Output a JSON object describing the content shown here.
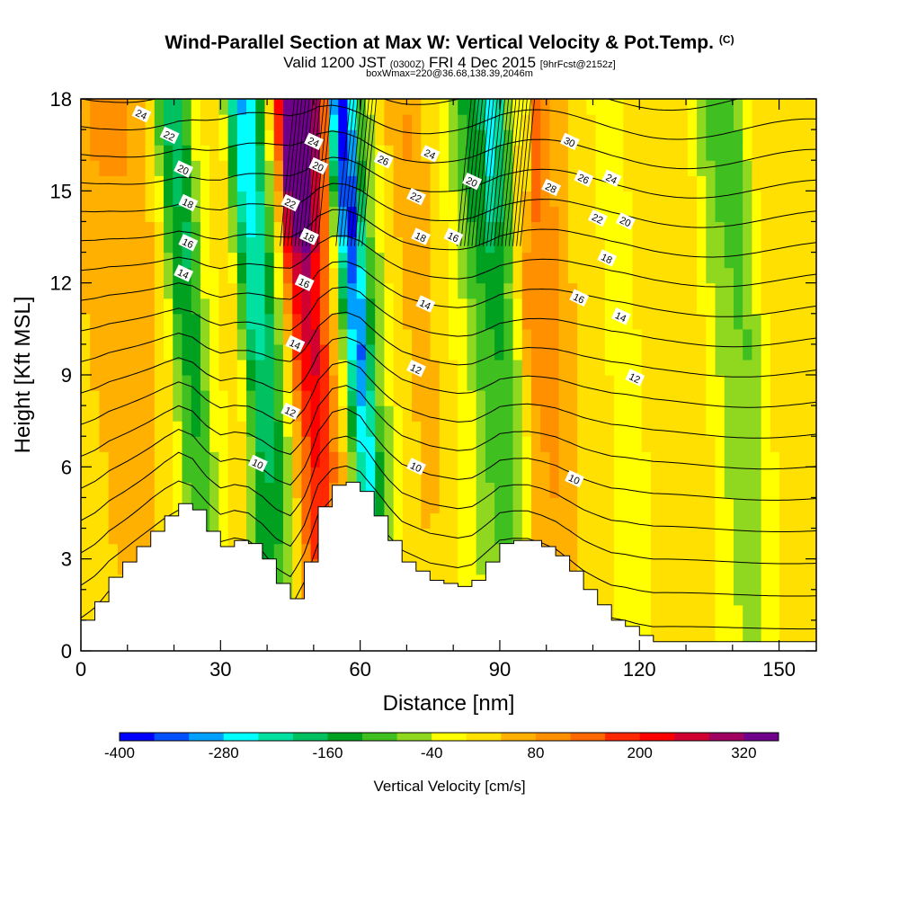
{
  "header": {
    "title": "Wind-Parallel Section at Max W: Vertical Velocity & Pot.Temp.",
    "title_mark": "(C)",
    "subtitle_a": "Valid 1200 JST",
    "subtitle_b": "(0300Z)",
    "subtitle_c": "FRI 4 Dec 2015",
    "subtitle_d": "[9hrFcst@2152z]",
    "box_info": "boxWmax=220@36.68,138.39,2046m"
  },
  "chart_data": {
    "type": "heatmap",
    "title": "Wind-Parallel Section at Max W: Vertical Velocity & Pot.Temp.",
    "xlabel": "Distance [nm]",
    "ylabel": "Height [Kft MSL]",
    "xlim": [
      0,
      158
    ],
    "ylim": [
      0,
      18
    ],
    "x_ticks": [
      0,
      30,
      60,
      90,
      120,
      150
    ],
    "y_ticks": [
      0,
      3,
      6,
      9,
      12,
      15,
      18
    ],
    "colorbar": {
      "label": "Vertical Velocity [cm/s]",
      "min": -400,
      "max": 360,
      "step": 40,
      "tick_values": [
        -400,
        -280,
        -160,
        -40,
        80,
        200,
        320
      ],
      "colors": [
        "#0000ff",
        "#0050ff",
        "#00a0ff",
        "#00ffff",
        "#00e0a0",
        "#00c060",
        "#00a020",
        "#40c020",
        "#90d820",
        "#ffff00",
        "#ffe000",
        "#ffb000",
        "#ff9000",
        "#ff6800",
        "#ff2800",
        "#ff0000",
        "#d00030",
        "#a00060",
        "#70008c"
      ]
    },
    "w_field_x_nm": [
      0,
      8,
      15,
      20,
      23,
      26,
      30,
      35,
      39,
      42,
      45,
      48,
      50,
      52,
      55,
      58,
      60,
      62,
      65,
      70,
      75,
      80,
      85,
      88,
      92,
      95,
      98,
      102,
      106,
      110,
      115,
      120,
      125,
      130,
      135,
      140,
      145,
      150,
      155,
      158
    ],
    "w_field_profile_cm_s": [
      20,
      60,
      60,
      20,
      -110,
      -140,
      -10,
      20,
      -200,
      -190,
      -40,
      150,
      230,
      240,
      120,
      -40,
      -240,
      -300,
      -80,
      20,
      60,
      20,
      -40,
      -100,
      -120,
      -60,
      80,
      100,
      60,
      20,
      0,
      -10,
      20,
      20,
      10,
      -60,
      -80,
      10,
      20,
      20
    ],
    "terrain_x_nm": [
      0,
      3,
      6,
      9,
      12,
      15,
      18,
      21,
      24,
      27,
      30,
      33,
      36,
      39,
      42,
      45,
      48,
      51,
      54,
      57,
      60,
      63,
      66,
      69,
      72,
      75,
      78,
      81,
      84,
      87,
      90,
      93,
      96,
      99,
      102,
      105,
      108,
      111,
      114,
      117,
      120,
      123,
      126,
      129,
      132,
      135,
      138,
      141,
      144,
      147,
      150,
      153,
      156,
      158
    ],
    "terrain_kft": [
      1.0,
      1.6,
      2.4,
      2.9,
      3.4,
      3.9,
      4.4,
      4.8,
      4.6,
      3.9,
      3.4,
      3.6,
      3.5,
      3.0,
      2.2,
      1.7,
      2.9,
      4.7,
      5.4,
      5.5,
      5.2,
      4.4,
      3.6,
      2.9,
      2.6,
      2.3,
      2.2,
      2.1,
      2.3,
      2.9,
      3.5,
      3.6,
      3.6,
      3.4,
      3.1,
      2.6,
      2.0,
      1.5,
      1.0,
      0.8,
      0.5,
      0.3,
      0.3,
      0.3,
      0.3,
      0.3,
      0.3,
      0.3,
      0.3,
      0.3,
      0.3,
      0.3,
      0.3,
      0.3
    ],
    "theta_contours_C": [
      10,
      12,
      14,
      16,
      18,
      20,
      22,
      24,
      26,
      28,
      30
    ],
    "theta_contour_labels": [
      {
        "value": "10",
        "x": 38,
        "y": 6.1
      },
      {
        "value": "10",
        "x": 72,
        "y": 6.0
      },
      {
        "value": "10",
        "x": 106,
        "y": 5.6
      },
      {
        "value": "12",
        "x": 45,
        "y": 7.8
      },
      {
        "value": "12",
        "x": 72,
        "y": 9.2
      },
      {
        "value": "12",
        "x": 119,
        "y": 8.9
      },
      {
        "value": "14",
        "x": 22,
        "y": 12.3
      },
      {
        "value": "14",
        "x": 46,
        "y": 10.0
      },
      {
        "value": "14",
        "x": 74,
        "y": 11.3
      },
      {
        "value": "14",
        "x": 116,
        "y": 10.9
      },
      {
        "value": "16",
        "x": 23,
        "y": 13.3
      },
      {
        "value": "16",
        "x": 48,
        "y": 12.0
      },
      {
        "value": "16",
        "x": 107,
        "y": 11.5
      },
      {
        "value": "16",
        "x": 80,
        "y": 13.5
      },
      {
        "value": "18",
        "x": 23,
        "y": 14.6
      },
      {
        "value": "18",
        "x": 49,
        "y": 13.5
      },
      {
        "value": "18",
        "x": 73,
        "y": 13.5
      },
      {
        "value": "18",
        "x": 113,
        "y": 12.8
      },
      {
        "value": "20",
        "x": 22,
        "y": 15.7
      },
      {
        "value": "20",
        "x": 51,
        "y": 15.8
      },
      {
        "value": "20",
        "x": 84,
        "y": 15.3
      },
      {
        "value": "20",
        "x": 117,
        "y": 14.0
      },
      {
        "value": "22",
        "x": 19,
        "y": 16.8
      },
      {
        "value": "22",
        "x": 45,
        "y": 14.6
      },
      {
        "value": "22",
        "x": 72,
        "y": 14.8
      },
      {
        "value": "22",
        "x": 111,
        "y": 14.1
      },
      {
        "value": "24",
        "x": 13,
        "y": 17.5
      },
      {
        "value": "24",
        "x": 50,
        "y": 16.6
      },
      {
        "value": "24",
        "x": 75,
        "y": 16.2
      },
      {
        "value": "24",
        "x": 114,
        "y": 15.4
      },
      {
        "value": "26",
        "x": 65,
        "y": 16.0
      },
      {
        "value": "26",
        "x": 108,
        "y": 15.4
      },
      {
        "value": "28",
        "x": 101,
        "y": 15.1
      },
      {
        "value": "30",
        "x": 105,
        "y": 16.6
      }
    ]
  }
}
